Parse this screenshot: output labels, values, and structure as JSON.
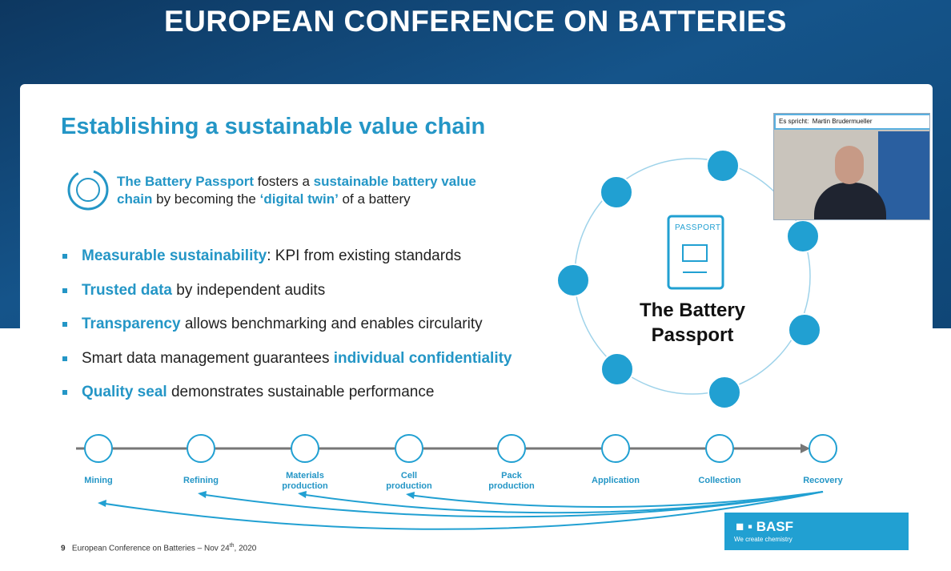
{
  "header": {
    "title": "EUROPEAN CONFERENCE ON BATTERIES"
  },
  "slide": {
    "title": "Establishing a sustainable value chain",
    "intro": [
      {
        "text": "The Battery Passport",
        "highlight": true
      },
      {
        "text": " fosters a ",
        "highlight": false
      },
      {
        "text": "sustainable battery value chain",
        "highlight": true
      },
      {
        "text": " by becoming the ",
        "highlight": false
      },
      {
        "text": "‘digital twin’",
        "highlight": true
      },
      {
        "text": " of a battery",
        "highlight": false
      }
    ],
    "bullets": [
      [
        {
          "text": "Measurable sustainability",
          "highlight": true
        },
        {
          "text": ": KPI from existing standards",
          "highlight": false
        }
      ],
      [
        {
          "text": "Trusted data",
          "highlight": true
        },
        {
          "text": " by independent audits",
          "highlight": false
        }
      ],
      [
        {
          "text": "Transparency",
          "highlight": true
        },
        {
          "text": " allows benchmarking and enables circularity",
          "highlight": false
        }
      ],
      [
        {
          "text": "Smart data management guarantees ",
          "highlight": false
        },
        {
          "text": "individual confidentiality",
          "highlight": true
        }
      ],
      [
        {
          "text": "Quality seal",
          "highlight": true
        },
        {
          "text": " demonstrates sustainable performance",
          "highlight": false
        }
      ]
    ],
    "passport": {
      "badge": "PASSPORT",
      "line1": "The Battery",
      "line2": "Passport"
    },
    "chain": [
      "Mining",
      "Refining",
      "Materials production",
      "Cell production",
      "Pack production",
      "Application",
      "Collection",
      "Recovery"
    ],
    "footer": {
      "number": "9",
      "text": "European Conference on Batteries – Nov 24",
      "sup": "th",
      "tail": ", 2020"
    },
    "logo": {
      "name": "BASF",
      "tagline": "We create chemistry"
    }
  },
  "video": {
    "label": "Es spricht:",
    "speaker": "Martin Brudermueller"
  }
}
